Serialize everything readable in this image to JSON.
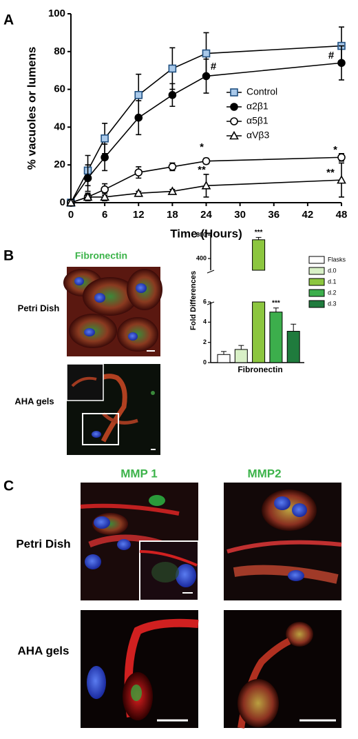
{
  "panel_labels": [
    "A",
    "B",
    "C"
  ],
  "chart_data": [
    {
      "type": "line",
      "xlabel": "Time (Hours)",
      "ylabel": "% vacuoles or lumens",
      "x": [
        0,
        3,
        6,
        12,
        18,
        24,
        48
      ],
      "xlim": [
        0,
        48
      ],
      "xticks": [
        0,
        6,
        12,
        18,
        24,
        30,
        36,
        42,
        48
      ],
      "ylim": [
        0,
        100
      ],
      "yticks": [
        0,
        20,
        40,
        60,
        80,
        100
      ],
      "series": [
        {
          "name": "Control",
          "marker": "square",
          "color": "#a9c9ea",
          "values": [
            0,
            17,
            34,
            57,
            71,
            79,
            83
          ],
          "errors": [
            0,
            8,
            8,
            11,
            11,
            11,
            10
          ]
        },
        {
          "name": "α2β1",
          "marker": "filled-circle",
          "color": "#000000",
          "values": [
            0,
            13,
            24,
            45,
            57,
            67,
            74
          ],
          "errors": [
            0,
            7,
            7,
            9,
            6,
            9,
            9
          ]
        },
        {
          "name": "α5β1",
          "marker": "open-circle",
          "color": "#ffffff",
          "values": [
            0,
            3,
            7,
            16,
            19,
            22,
            24
          ],
          "errors": [
            0,
            2,
            3,
            3,
            2,
            1.5,
            2
          ]
        },
        {
          "name": "αVβ3",
          "marker": "triangle",
          "color": "#ffffff",
          "values": [
            0,
            3,
            3,
            5,
            6,
            9,
            12
          ],
          "errors": [
            0,
            1,
            2,
            1,
            1,
            6,
            9
          ]
        }
      ],
      "annotations": [
        "*",
        "**",
        "#",
        "#",
        "*",
        "**"
      ]
    },
    {
      "type": "bar",
      "xlabel": "Fibronectin",
      "ylabel": "Fold  Differences",
      "categories": [
        "Flasks",
        "d.0",
        "d.1",
        "d.2",
        "d.3"
      ],
      "colors": [
        "#ffffff",
        "#d8f0c6",
        "#8cc63f",
        "#3cae4c",
        "#1f7b3d"
      ],
      "values": [
        0.8,
        1.3,
        720,
        5,
        3.1
      ],
      "errors": [
        0.3,
        0.4,
        40,
        0.4,
        0.7
      ],
      "segments": [
        {
          "ylim": [
            0,
            6
          ],
          "yticks": [
            0,
            2,
            4,
            6
          ]
        },
        {
          "ylim": [
            200,
            800
          ],
          "yticks": [
            400,
            800
          ]
        }
      ],
      "annotations": [
        "***",
        "***"
      ]
    }
  ],
  "images": {
    "b_title": "Fibronectin",
    "b_rows": [
      "Petri Dish",
      "AHA gels"
    ],
    "c_columns": [
      "MMP 1",
      "MMP2"
    ],
    "c_rows": [
      "Petri Dish",
      "AHA gels"
    ]
  }
}
